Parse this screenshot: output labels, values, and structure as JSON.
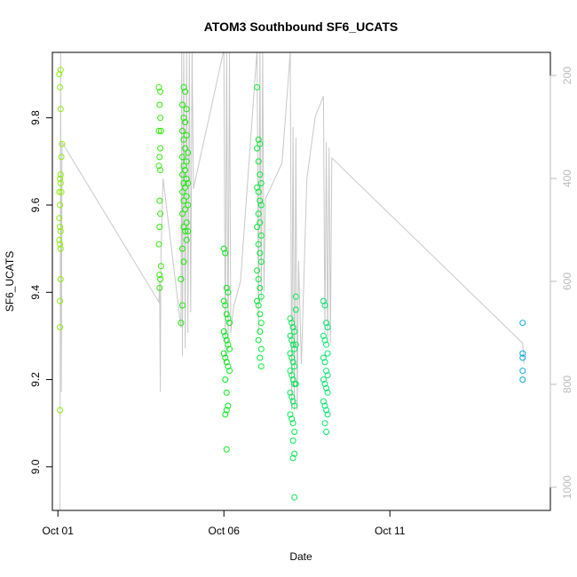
{
  "chart_data": {
    "type": "scatter",
    "title": "ATOM3 Southbound SF6_UCATS",
    "xlabel": "Date",
    "ylabel": "SF6_UCATS",
    "x_axis": {
      "unit": "days",
      "range": [
        "2017-09-30 20:00",
        "2017-10-15 20:00"
      ],
      "ticks": [
        {
          "value": "2017-10-01",
          "label": "Oct 01"
        },
        {
          "value": "2017-10-06",
          "label": "Oct 06"
        },
        {
          "value": "2017-10-11",
          "label": "Oct 11"
        }
      ]
    },
    "y_axis": {
      "range": [
        8.9,
        9.95
      ],
      "ticks": [
        9.0,
        9.2,
        9.4,
        9.6,
        9.8
      ]
    },
    "y2_axis": {
      "label": "",
      "range": [
        1045,
        155
      ],
      "ticks": [
        200,
        400,
        600,
        800,
        1000
      ],
      "color": "#bbbbbb"
    },
    "profile_line": {
      "color": "#c8c8c8",
      "points": [
        [
          "2017-10-01 01:30",
          1045
        ],
        [
          "2017-10-01 02:00",
          150
        ],
        [
          "2017-10-01 02:30",
          815
        ],
        [
          "2017-10-01 03:00",
          330
        ],
        [
          "2017-10-04 01:00",
          640
        ],
        [
          "2017-10-04 01:30",
          600
        ],
        [
          "2017-10-04 02:00",
          815
        ],
        [
          "2017-10-04 02:30",
          550
        ],
        [
          "2017-10-04 04:00",
          400
        ],
        [
          "2017-10-04 17:00",
          690
        ],
        [
          "2017-10-04 17:30",
          150
        ],
        [
          "2017-10-04 18:00",
          745
        ],
        [
          "2017-10-04 19:00",
          150
        ],
        [
          "2017-10-04 20:00",
          730
        ],
        [
          "2017-10-04 21:00",
          150
        ],
        [
          "2017-10-04 22:00",
          700
        ],
        [
          "2017-10-04 23:00",
          150
        ],
        [
          "2017-10-05 00:00",
          660
        ],
        [
          "2017-10-05 01:00",
          150
        ],
        [
          "2017-10-05 02:00",
          420
        ],
        [
          "2017-10-06 00:00",
          150
        ],
        [
          "2017-10-06 01:00",
          760
        ],
        [
          "2017-10-06 02:00",
          150
        ],
        [
          "2017-10-06 03:00",
          740
        ],
        [
          "2017-10-06 04:00",
          150
        ],
        [
          "2017-10-06 05:00",
          700
        ],
        [
          "2017-10-06 07:00",
          650
        ],
        [
          "2017-10-06 12:00",
          600
        ],
        [
          "2017-10-07 00:00",
          150
        ],
        [
          "2017-10-07 01:00",
          700
        ],
        [
          "2017-10-07 02:00",
          150
        ],
        [
          "2017-10-07 03:00",
          640
        ],
        [
          "2017-10-07 04:00",
          150
        ],
        [
          "2017-10-07 05:00",
          620
        ],
        [
          "2017-10-07 06:00",
          440
        ],
        [
          "2017-10-07 18:00",
          370
        ],
        [
          "2017-10-08 00:00",
          155
        ],
        [
          "2017-10-08 01:00",
          850
        ],
        [
          "2017-10-08 02:00",
          300
        ],
        [
          "2017-10-08 03:00",
          850
        ],
        [
          "2017-10-08 04:00",
          320
        ],
        [
          "2017-10-08 05:00",
          850
        ],
        [
          "2017-10-08 06:00",
          560
        ],
        [
          "2017-10-08 08:00",
          760
        ],
        [
          "2017-10-08 12:00",
          400
        ],
        [
          "2017-10-08 18:00",
          280
        ],
        [
          "2017-10-09 00:00",
          240
        ],
        [
          "2017-10-09 01:00",
          700
        ],
        [
          "2017-10-09 02:00",
          330
        ],
        [
          "2017-10-09 03:00",
          720
        ],
        [
          "2017-10-09 04:00",
          340
        ],
        [
          "2017-10-09 05:00",
          720
        ],
        [
          "2017-10-09 06:00",
          360
        ],
        [
          "2017-10-15 00:00",
          720
        ],
        [
          "2017-10-15 01:00",
          760
        ]
      ]
    },
    "series": [
      {
        "color_note": "point colors vary by date: yellow-green (Oct 01) through green and teal to cyan-blue (Oct 15)",
        "points": [
          [
            "2017-10-01 01:00",
            9.9
          ],
          [
            "2017-10-01 02:00",
            9.91
          ],
          [
            "2017-10-01 01:30",
            9.87
          ],
          [
            "2017-10-01 02:00",
            9.82
          ],
          [
            "2017-10-01 03:00",
            9.74
          ],
          [
            "2017-10-01 02:30",
            9.71
          ],
          [
            "2017-10-01 02:00",
            9.67
          ],
          [
            "2017-10-01 01:30",
            9.66
          ],
          [
            "2017-10-01 02:00",
            9.65
          ],
          [
            "2017-10-01 01:00",
            9.63
          ],
          [
            "2017-10-01 02:30",
            9.63
          ],
          [
            "2017-10-01 01:30",
            9.6
          ],
          [
            "2017-10-01 01:00",
            9.57
          ],
          [
            "2017-10-01 01:30",
            9.55
          ],
          [
            "2017-10-01 02:00",
            9.54
          ],
          [
            "2017-10-01 01:00",
            9.52
          ],
          [
            "2017-10-01 01:30",
            9.51
          ],
          [
            "2017-10-01 02:00",
            9.5
          ],
          [
            "2017-10-01 02:00",
            9.43
          ],
          [
            "2017-10-01 01:30",
            9.38
          ],
          [
            "2017-10-01 01:30",
            9.32
          ],
          [
            "2017-10-01 01:30",
            9.13
          ],
          [
            "2017-10-04 01:00",
            9.87
          ],
          [
            "2017-10-04 02:00",
            9.86
          ],
          [
            "2017-10-04 01:30",
            9.83
          ],
          [
            "2017-10-04 02:00",
            9.8
          ],
          [
            "2017-10-04 01:00",
            9.77
          ],
          [
            "2017-10-04 02:30",
            9.77
          ],
          [
            "2017-10-04 02:00",
            9.73
          ],
          [
            "2017-10-04 01:30",
            9.71
          ],
          [
            "2017-10-04 01:00",
            9.69
          ],
          [
            "2017-10-04 02:00",
            9.68
          ],
          [
            "2017-10-04 01:30",
            9.61
          ],
          [
            "2017-10-04 02:00",
            9.58
          ],
          [
            "2017-10-04 01:30",
            9.55
          ],
          [
            "2017-10-04 01:00",
            9.51
          ],
          [
            "2017-10-04 02:30",
            9.46
          ],
          [
            "2017-10-04 01:30",
            9.44
          ],
          [
            "2017-10-04 02:00",
            9.43
          ],
          [
            "2017-10-04 01:30",
            9.41
          ],
          [
            "2017-10-04 19:00",
            9.87
          ],
          [
            "2017-10-04 20:00",
            9.86
          ],
          [
            "2017-10-04 18:00",
            9.83
          ],
          [
            "2017-10-04 21:00",
            9.82
          ],
          [
            "2017-10-04 19:00",
            9.8
          ],
          [
            "2017-10-04 20:00",
            9.79
          ],
          [
            "2017-10-04 18:00",
            9.77
          ],
          [
            "2017-10-04 21:00",
            9.76
          ],
          [
            "2017-10-04 19:00",
            9.75
          ],
          [
            "2017-10-04 20:00",
            9.73
          ],
          [
            "2017-10-04 18:00",
            9.71
          ],
          [
            "2017-10-04 21:00",
            9.7
          ],
          [
            "2017-10-04 19:00",
            9.69
          ],
          [
            "2017-10-04 20:00",
            9.68
          ],
          [
            "2017-10-04 18:00",
            9.67
          ],
          [
            "2017-10-04 21:00",
            9.66
          ],
          [
            "2017-10-04 19:00",
            9.65
          ],
          [
            "2017-10-04 20:00",
            9.64
          ],
          [
            "2017-10-04 18:00",
            9.63
          ],
          [
            "2017-10-04 21:00",
            9.62
          ],
          [
            "2017-10-04 19:00",
            9.61
          ],
          [
            "2017-10-04 20:00",
            9.59
          ],
          [
            "2017-10-04 18:00",
            9.58
          ],
          [
            "2017-10-04 21:00",
            9.56
          ],
          [
            "2017-10-04 19:00",
            9.55
          ],
          [
            "2017-10-04 20:00",
            9.54
          ],
          [
            "2017-10-04 21:00",
            9.52
          ],
          [
            "2017-10-04 18:00",
            9.5
          ],
          [
            "2017-10-04 19:00",
            9.47
          ],
          [
            "2017-10-04 17:00",
            9.43
          ],
          [
            "2017-10-04 18:00",
            9.37
          ],
          [
            "2017-10-04 17:00",
            9.33
          ],
          [
            "2017-10-04 22:00",
            9.72
          ],
          [
            "2017-10-04 22:00",
            9.65
          ],
          [
            "2017-10-04 22:00",
            9.6
          ],
          [
            "2017-10-04 22:00",
            9.54
          ],
          [
            "2017-10-06 00:00",
            9.5
          ],
          [
            "2017-10-06 01:00",
            9.49
          ],
          [
            "2017-10-06 02:00",
            9.41
          ],
          [
            "2017-10-06 03:00",
            9.4
          ],
          [
            "2017-10-06 00:00",
            9.38
          ],
          [
            "2017-10-06 01:00",
            9.37
          ],
          [
            "2017-10-06 02:00",
            9.35
          ],
          [
            "2017-10-06 03:00",
            9.34
          ],
          [
            "2017-10-06 04:00",
            9.33
          ],
          [
            "2017-10-06 00:00",
            9.31
          ],
          [
            "2017-10-06 01:00",
            9.3
          ],
          [
            "2017-10-06 02:00",
            9.29
          ],
          [
            "2017-10-06 03:00",
            9.28
          ],
          [
            "2017-10-06 04:00",
            9.27
          ],
          [
            "2017-10-06 00:00",
            9.26
          ],
          [
            "2017-10-06 01:00",
            9.25
          ],
          [
            "2017-10-06 02:00",
            9.24
          ],
          [
            "2017-10-06 03:00",
            9.23
          ],
          [
            "2017-10-06 04:00",
            9.22
          ],
          [
            "2017-10-06 01:00",
            9.2
          ],
          [
            "2017-10-06 02:00",
            9.17
          ],
          [
            "2017-10-06 03:00",
            9.14
          ],
          [
            "2017-10-06 02:00",
            9.13
          ],
          [
            "2017-10-06 01:00",
            9.12
          ],
          [
            "2017-10-06 02:00",
            9.04
          ],
          [
            "2017-10-07 00:00",
            9.87
          ],
          [
            "2017-10-07 01:00",
            9.75
          ],
          [
            "2017-10-07 02:00",
            9.74
          ],
          [
            "2017-10-07 00:00",
            9.73
          ],
          [
            "2017-10-07 01:00",
            9.7
          ],
          [
            "2017-10-07 02:00",
            9.67
          ],
          [
            "2017-10-07 03:00",
            9.65
          ],
          [
            "2017-10-07 00:00",
            9.64
          ],
          [
            "2017-10-07 01:00",
            9.63
          ],
          [
            "2017-10-07 02:00",
            9.61
          ],
          [
            "2017-10-07 03:00",
            9.6
          ],
          [
            "2017-10-07 01:00",
            9.58
          ],
          [
            "2017-10-07 02:00",
            9.56
          ],
          [
            "2017-10-07 00:00",
            9.55
          ],
          [
            "2017-10-07 03:00",
            9.53
          ],
          [
            "2017-10-07 01:00",
            9.51
          ],
          [
            "2017-10-07 02:00",
            9.49
          ],
          [
            "2017-10-07 03:00",
            9.47
          ],
          [
            "2017-10-07 00:00",
            9.45
          ],
          [
            "2017-10-07 01:00",
            9.43
          ],
          [
            "2017-10-07 02:00",
            9.41
          ],
          [
            "2017-10-07 03:00",
            9.39
          ],
          [
            "2017-10-07 00:00",
            9.38
          ],
          [
            "2017-10-07 01:00",
            9.37
          ],
          [
            "2017-10-07 02:00",
            9.35
          ],
          [
            "2017-10-07 03:00",
            9.33
          ],
          [
            "2017-10-07 02:00",
            9.31
          ],
          [
            "2017-10-07 01:00",
            9.29
          ],
          [
            "2017-10-07 03:00",
            9.27
          ],
          [
            "2017-10-07 02:00",
            9.25
          ],
          [
            "2017-10-07 03:00",
            9.23
          ],
          [
            "2017-10-08 00:00",
            9.34
          ],
          [
            "2017-10-08 01:00",
            9.33
          ],
          [
            "2017-10-08 02:00",
            9.32
          ],
          [
            "2017-10-08 03:00",
            9.31
          ],
          [
            "2017-10-08 00:00",
            9.3
          ],
          [
            "2017-10-08 01:00",
            9.29
          ],
          [
            "2017-10-08 02:00",
            9.28
          ],
          [
            "2017-10-08 03:00",
            9.27
          ],
          [
            "2017-10-08 00:00",
            9.26
          ],
          [
            "2017-10-08 01:00",
            9.25
          ],
          [
            "2017-10-08 02:00",
            9.24
          ],
          [
            "2017-10-08 03:00",
            9.23
          ],
          [
            "2017-10-08 00:00",
            9.22
          ],
          [
            "2017-10-08 01:00",
            9.21
          ],
          [
            "2017-10-08 02:00",
            9.2
          ],
          [
            "2017-10-08 03:00",
            9.19
          ],
          [
            "2017-10-08 00:00",
            9.17
          ],
          [
            "2017-10-08 01:00",
            9.16
          ],
          [
            "2017-10-08 02:00",
            9.15
          ],
          [
            "2017-10-08 03:00",
            9.14
          ],
          [
            "2017-10-08 00:00",
            9.12
          ],
          [
            "2017-10-08 01:00",
            9.11
          ],
          [
            "2017-10-08 02:00",
            9.1
          ],
          [
            "2017-10-08 03:00",
            9.08
          ],
          [
            "2017-10-08 02:00",
            9.06
          ],
          [
            "2017-10-08 03:00",
            9.03
          ],
          [
            "2017-10-08 02:00",
            9.02
          ],
          [
            "2017-10-08 03:00",
            8.93
          ],
          [
            "2017-10-08 04:00",
            9.39
          ],
          [
            "2017-10-08 04:00",
            9.36
          ],
          [
            "2017-10-08 04:00",
            9.28
          ],
          [
            "2017-10-08 04:00",
            9.19
          ],
          [
            "2017-10-09 00:00",
            9.38
          ],
          [
            "2017-10-09 01:00",
            9.37
          ],
          [
            "2017-10-09 02:00",
            9.33
          ],
          [
            "2017-10-09 03:00",
            9.32
          ],
          [
            "2017-10-09 00:00",
            9.3
          ],
          [
            "2017-10-09 01:00",
            9.29
          ],
          [
            "2017-10-09 02:00",
            9.28
          ],
          [
            "2017-10-09 03:00",
            9.26
          ],
          [
            "2017-10-09 00:00",
            9.25
          ],
          [
            "2017-10-09 01:00",
            9.24
          ],
          [
            "2017-10-09 02:00",
            9.22
          ],
          [
            "2017-10-09 03:00",
            9.21
          ],
          [
            "2017-10-09 00:00",
            9.2
          ],
          [
            "2017-10-09 01:00",
            9.19
          ],
          [
            "2017-10-09 02:00",
            9.18
          ],
          [
            "2017-10-09 03:00",
            9.17
          ],
          [
            "2017-10-09 00:00",
            9.15
          ],
          [
            "2017-10-09 01:00",
            9.14
          ],
          [
            "2017-10-09 02:00",
            9.13
          ],
          [
            "2017-10-09 03:00",
            9.12
          ],
          [
            "2017-10-09 01:00",
            9.1
          ],
          [
            "2017-10-09 02:00",
            9.08
          ],
          [
            "2017-10-15 00:00",
            9.33
          ],
          [
            "2017-10-15 00:00",
            9.26
          ],
          [
            "2017-10-15 00:00",
            9.25
          ],
          [
            "2017-10-15 00:00",
            9.22
          ],
          [
            "2017-10-15 00:00",
            9.2
          ]
        ]
      }
    ],
    "grid": false,
    "legend": "none"
  }
}
